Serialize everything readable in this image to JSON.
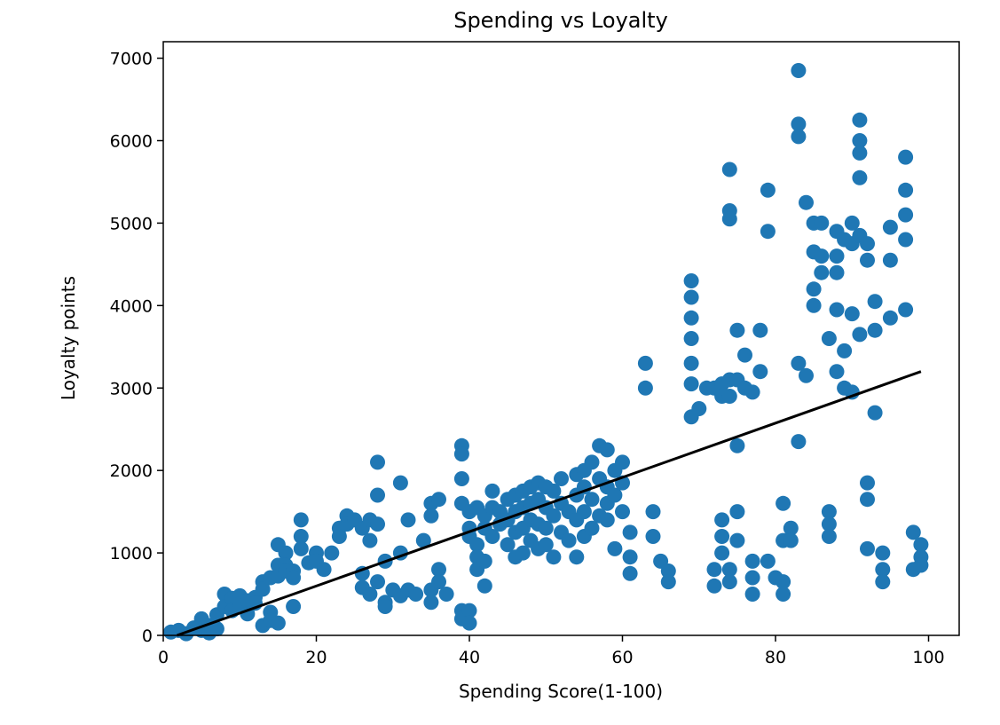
{
  "chart_data": {
    "type": "scatter",
    "title": "Spending vs Loyalty",
    "xlabel": "Spending Score(1-100)",
    "ylabel": "Loyalty points",
    "xlim": [
      0,
      104
    ],
    "ylim": [
      0,
      7200
    ],
    "xticks": [
      0,
      20,
      40,
      60,
      80,
      100
    ],
    "yticks": [
      0,
      1000,
      2000,
      3000,
      4000,
      5000,
      6000,
      7000
    ],
    "grid": false,
    "legend": "none",
    "colors": {
      "points": "#1f77b4",
      "line": "#000000"
    },
    "series": [
      {
        "kind": "scatter",
        "points": [
          [
            1,
            40
          ],
          [
            2,
            60
          ],
          [
            3,
            20
          ],
          [
            4,
            90
          ],
          [
            5,
            200
          ],
          [
            5,
            60
          ],
          [
            6,
            120
          ],
          [
            6,
            30
          ],
          [
            7,
            250
          ],
          [
            7,
            80
          ],
          [
            8,
            500
          ],
          [
            8,
            350
          ],
          [
            9,
            450
          ],
          [
            9,
            300
          ],
          [
            10,
            480
          ],
          [
            10,
            380
          ],
          [
            11,
            420
          ],
          [
            11,
            260
          ],
          [
            12,
            460
          ],
          [
            12,
            390
          ],
          [
            13,
            650
          ],
          [
            13,
            560
          ],
          [
            13,
            120
          ],
          [
            14,
            700
          ],
          [
            14,
            280
          ],
          [
            14,
            180
          ],
          [
            15,
            1100
          ],
          [
            15,
            850
          ],
          [
            15,
            720
          ],
          [
            15,
            150
          ],
          [
            16,
            1000
          ],
          [
            16,
            850
          ],
          [
            16,
            780
          ],
          [
            17,
            780
          ],
          [
            17,
            350
          ],
          [
            17,
            700
          ],
          [
            18,
            1400
          ],
          [
            18,
            1200
          ],
          [
            18,
            1050
          ],
          [
            19,
            880
          ],
          [
            20,
            1000
          ],
          [
            20,
            900
          ],
          [
            21,
            800
          ],
          [
            22,
            1000
          ],
          [
            23,
            1300
          ],
          [
            23,
            1200
          ],
          [
            24,
            1450
          ],
          [
            24,
            1350
          ],
          [
            25,
            1400
          ],
          [
            26,
            1300
          ],
          [
            26,
            750
          ],
          [
            26,
            580
          ],
          [
            27,
            1400
          ],
          [
            27,
            1150
          ],
          [
            27,
            500
          ],
          [
            28,
            2100
          ],
          [
            28,
            1700
          ],
          [
            28,
            1350
          ],
          [
            28,
            650
          ],
          [
            29,
            400
          ],
          [
            29,
            350
          ],
          [
            29,
            900
          ],
          [
            30,
            550
          ],
          [
            31,
            1850
          ],
          [
            31,
            1000
          ],
          [
            31,
            480
          ],
          [
            32,
            1400
          ],
          [
            32,
            550
          ],
          [
            33,
            500
          ],
          [
            34,
            1150
          ],
          [
            35,
            1600
          ],
          [
            35,
            1450
          ],
          [
            35,
            550
          ],
          [
            35,
            400
          ],
          [
            36,
            1650
          ],
          [
            36,
            800
          ],
          [
            36,
            650
          ],
          [
            37,
            500
          ],
          [
            39,
            2300
          ],
          [
            39,
            2200
          ],
          [
            39,
            1900
          ],
          [
            39,
            1600
          ],
          [
            39,
            300
          ],
          [
            39,
            200
          ],
          [
            40,
            1500
          ],
          [
            40,
            1300
          ],
          [
            40,
            1200
          ],
          [
            40,
            300
          ],
          [
            40,
            150
          ],
          [
            41,
            1550
          ],
          [
            41,
            1100
          ],
          [
            41,
            950
          ],
          [
            41,
            800
          ],
          [
            42,
            1450
          ],
          [
            42,
            1300
          ],
          [
            42,
            900
          ],
          [
            42,
            600
          ],
          [
            43,
            1750
          ],
          [
            43,
            1550
          ],
          [
            43,
            1200
          ],
          [
            44,
            1500
          ],
          [
            44,
            1350
          ],
          [
            45,
            1650
          ],
          [
            45,
            1400
          ],
          [
            45,
            1100
          ],
          [
            46,
            1700
          ],
          [
            46,
            1500
          ],
          [
            46,
            1250
          ],
          [
            46,
            950
          ],
          [
            47,
            1750
          ],
          [
            47,
            1550
          ],
          [
            47,
            1300
          ],
          [
            47,
            1000
          ],
          [
            48,
            1800
          ],
          [
            48,
            1600
          ],
          [
            48,
            1400
          ],
          [
            48,
            1150
          ],
          [
            49,
            1850
          ],
          [
            49,
            1650
          ],
          [
            49,
            1350
          ],
          [
            49,
            1050
          ],
          [
            50,
            1800
          ],
          [
            50,
            1550
          ],
          [
            50,
            1300
          ],
          [
            50,
            1100
          ],
          [
            51,
            1750
          ],
          [
            51,
            1450
          ],
          [
            51,
            950
          ],
          [
            52,
            1900
          ],
          [
            52,
            1600
          ],
          [
            52,
            1250
          ],
          [
            53,
            1500
          ],
          [
            53,
            1150
          ],
          [
            54,
            1950
          ],
          [
            54,
            1700
          ],
          [
            54,
            1400
          ],
          [
            54,
            950
          ],
          [
            55,
            2000
          ],
          [
            55,
            1800
          ],
          [
            55,
            1500
          ],
          [
            55,
            1200
          ],
          [
            56,
            2100
          ],
          [
            56,
            1650
          ],
          [
            56,
            1300
          ],
          [
            57,
            2300
          ],
          [
            57,
            1900
          ],
          [
            57,
            1450
          ],
          [
            58,
            2250
          ],
          [
            58,
            1800
          ],
          [
            58,
            1600
          ],
          [
            58,
            1400
          ],
          [
            59,
            2000
          ],
          [
            59,
            1700
          ],
          [
            59,
            1050
          ],
          [
            60,
            2100
          ],
          [
            60,
            1850
          ],
          [
            60,
            1500
          ],
          [
            61,
            1250
          ],
          [
            61,
            950
          ],
          [
            61,
            750
          ],
          [
            63,
            3300
          ],
          [
            63,
            3000
          ],
          [
            64,
            1500
          ],
          [
            64,
            1200
          ],
          [
            65,
            900
          ],
          [
            66,
            780
          ],
          [
            66,
            650
          ],
          [
            69,
            4300
          ],
          [
            69,
            4100
          ],
          [
            69,
            3850
          ],
          [
            69,
            3600
          ],
          [
            69,
            3300
          ],
          [
            69,
            3050
          ],
          [
            69,
            2650
          ],
          [
            70,
            2750
          ],
          [
            71,
            3000
          ],
          [
            72,
            3000
          ],
          [
            72,
            800
          ],
          [
            72,
            600
          ],
          [
            73,
            3050
          ],
          [
            73,
            2900
          ],
          [
            73,
            1400
          ],
          [
            73,
            1200
          ],
          [
            73,
            1000
          ],
          [
            74,
            5650
          ],
          [
            74,
            5150
          ],
          [
            74,
            5050
          ],
          [
            74,
            3100
          ],
          [
            74,
            2900
          ],
          [
            74,
            800
          ],
          [
            74,
            650
          ],
          [
            75,
            3700
          ],
          [
            75,
            3100
          ],
          [
            75,
            2300
          ],
          [
            75,
            1500
          ],
          [
            75,
            1150
          ],
          [
            76,
            3400
          ],
          [
            76,
            3000
          ],
          [
            77,
            2950
          ],
          [
            77,
            900
          ],
          [
            77,
            700
          ],
          [
            77,
            500
          ],
          [
            78,
            3700
          ],
          [
            78,
            3200
          ],
          [
            79,
            5400
          ],
          [
            79,
            4900
          ],
          [
            79,
            900
          ],
          [
            80,
            700
          ],
          [
            81,
            1600
          ],
          [
            81,
            1150
          ],
          [
            81,
            650
          ],
          [
            81,
            500
          ],
          [
            82,
            1300
          ],
          [
            82,
            1150
          ],
          [
            83,
            6850
          ],
          [
            83,
            6200
          ],
          [
            83,
            6050
          ],
          [
            83,
            3300
          ],
          [
            83,
            2350
          ],
          [
            84,
            5250
          ],
          [
            84,
            3150
          ],
          [
            85,
            5000
          ],
          [
            85,
            4650
          ],
          [
            85,
            4200
          ],
          [
            85,
            4000
          ],
          [
            86,
            5000
          ],
          [
            86,
            4600
          ],
          [
            86,
            4400
          ],
          [
            87,
            3600
          ],
          [
            87,
            1500
          ],
          [
            87,
            1350
          ],
          [
            87,
            1200
          ],
          [
            88,
            4900
          ],
          [
            88,
            4600
          ],
          [
            88,
            4400
          ],
          [
            88,
            3950
          ],
          [
            88,
            3200
          ],
          [
            89,
            4800
          ],
          [
            89,
            3450
          ],
          [
            89,
            3000
          ],
          [
            90,
            5000
          ],
          [
            90,
            4750
          ],
          [
            90,
            3900
          ],
          [
            90,
            2950
          ],
          [
            91,
            6250
          ],
          [
            91,
            6000
          ],
          [
            91,
            5850
          ],
          [
            91,
            5550
          ],
          [
            91,
            4850
          ],
          [
            91,
            3650
          ],
          [
            92,
            4750
          ],
          [
            92,
            4550
          ],
          [
            92,
            1850
          ],
          [
            92,
            1650
          ],
          [
            92,
            1050
          ],
          [
            93,
            4050
          ],
          [
            93,
            3700
          ],
          [
            93,
            2700
          ],
          [
            94,
            1000
          ],
          [
            94,
            800
          ],
          [
            94,
            650
          ],
          [
            95,
            4950
          ],
          [
            95,
            4550
          ],
          [
            95,
            3850
          ],
          [
            97,
            5800
          ],
          [
            97,
            5400
          ],
          [
            97,
            5100
          ],
          [
            97,
            4800
          ],
          [
            97,
            3950
          ],
          [
            98,
            1250
          ],
          [
            98,
            800
          ],
          [
            99,
            1100
          ],
          [
            99,
            950
          ],
          [
            99,
            850
          ]
        ]
      },
      {
        "kind": "line",
        "points": [
          [
            1.8,
            0
          ],
          [
            99,
            3200
          ]
        ]
      }
    ]
  }
}
